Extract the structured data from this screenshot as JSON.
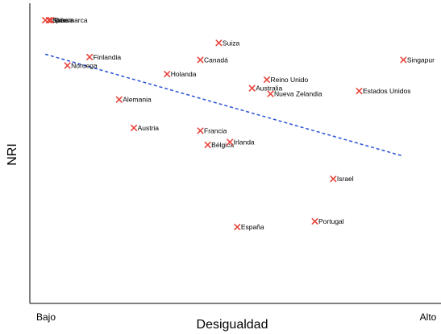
{
  "chart_data": {
    "type": "scatter",
    "title": "",
    "xlabel": "Desigualdad",
    "ylabel": "NRI",
    "x_tick_labels": [
      "Bajo",
      "Alto"
    ],
    "xlim": [
      0,
      100
    ],
    "ylim": [
      0,
      100
    ],
    "grid": false,
    "marker_color": "#e8453c",
    "trend_color": "#2851d8",
    "points": [
      {
        "label": "Japón",
        "x": 2,
        "y": 94
      },
      {
        "label": "Suecia",
        "x": 3,
        "y": 94
      },
      {
        "label": "Dinamarca",
        "x": 3.5,
        "y": 94
      },
      {
        "label": "Finlandia",
        "x": 14,
        "y": 81
      },
      {
        "label": "Noruega",
        "x": 8,
        "y": 78
      },
      {
        "label": "Alemania",
        "x": 22,
        "y": 66
      },
      {
        "label": "Austria",
        "x": 26,
        "y": 56
      },
      {
        "label": "Holanda",
        "x": 35,
        "y": 75
      },
      {
        "label": "Suiza",
        "x": 49,
        "y": 86
      },
      {
        "label": "Canadá",
        "x": 44,
        "y": 80
      },
      {
        "label": "Reino Unido",
        "x": 62,
        "y": 73
      },
      {
        "label": "Australia",
        "x": 58,
        "y": 70
      },
      {
        "label": "Nueva Zelandia",
        "x": 63,
        "y": 68
      },
      {
        "label": "Estados Unidos",
        "x": 87,
        "y": 69
      },
      {
        "label": "Singapur",
        "x": 99,
        "y": 80
      },
      {
        "label": "Francia",
        "x": 44,
        "y": 55
      },
      {
        "label": "Bélgica",
        "x": 46,
        "y": 50
      },
      {
        "label": "Irlanda",
        "x": 52,
        "y": 51
      },
      {
        "label": "Israel",
        "x": 80,
        "y": 38
      },
      {
        "label": "España",
        "x": 54,
        "y": 21
      },
      {
        "label": "Portugal",
        "x": 75,
        "y": 23
      }
    ],
    "trendline": {
      "x": [
        2,
        99
      ],
      "y": [
        82,
        46
      ]
    }
  }
}
